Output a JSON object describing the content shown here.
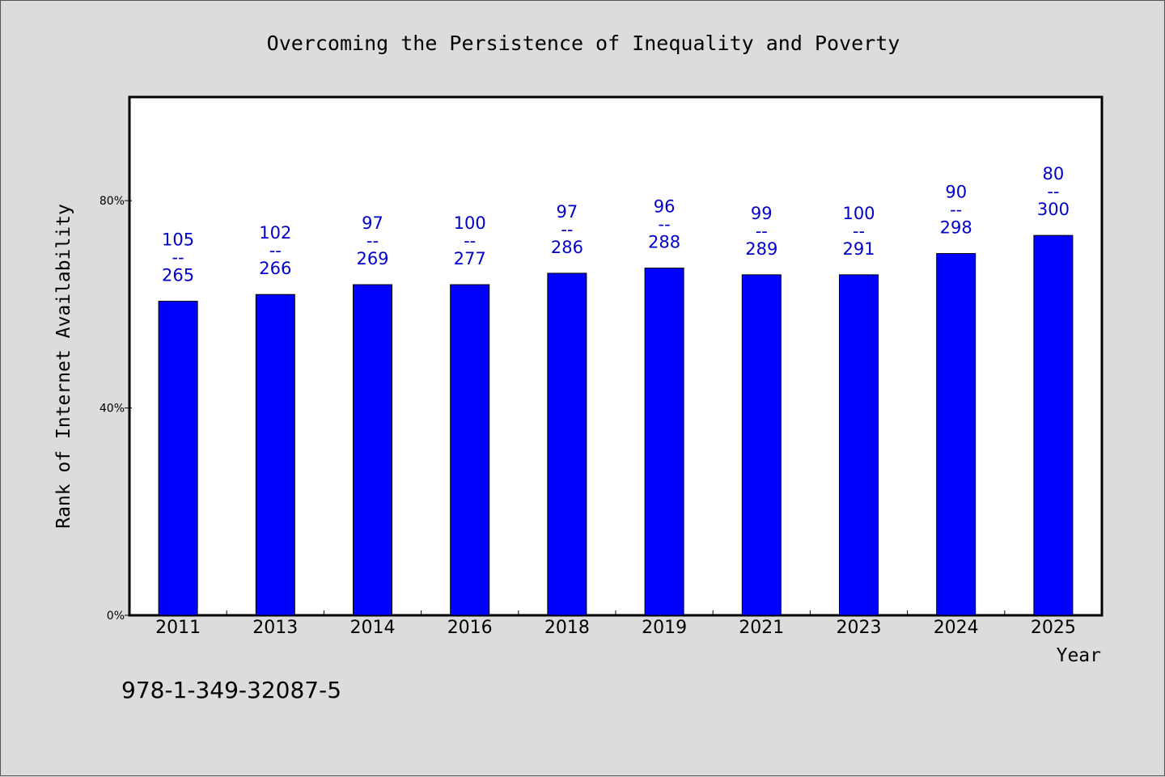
{
  "chart_data": {
    "type": "bar",
    "title": "Overcoming the Persistence of Inequality and Poverty",
    "xlabel": "Year",
    "ylabel": "Rank of Internet Availability",
    "yticks": [
      "0%",
      "40%",
      "80%"
    ],
    "ylim": [
      0,
      100
    ],
    "categories": [
      "2011",
      "2013",
      "2014",
      "2016",
      "2018",
      "2019",
      "2021",
      "2023",
      "2024",
      "2025"
    ],
    "values": [
      60.6,
      61.9,
      63.8,
      63.8,
      66.0,
      67.0,
      65.7,
      65.7,
      69.8,
      73.3
    ],
    "annotations": [
      {
        "top": "105",
        "sep": "--",
        "bottom": "265"
      },
      {
        "top": "102",
        "sep": "--",
        "bottom": "266"
      },
      {
        "top": "97",
        "sep": "--",
        "bottom": "269"
      },
      {
        "top": "100",
        "sep": "--",
        "bottom": "277"
      },
      {
        "top": "97",
        "sep": "--",
        "bottom": "286"
      },
      {
        "top": "96",
        "sep": "--",
        "bottom": "288"
      },
      {
        "top": "99",
        "sep": "--",
        "bottom": "289"
      },
      {
        "top": "100",
        "sep": "--",
        "bottom": "291"
      },
      {
        "top": "90",
        "sep": "--",
        "bottom": "298"
      },
      {
        "top": "80",
        "sep": "--",
        "bottom": "300"
      }
    ],
    "bar_color": "#0000ff",
    "label_color": "#0000cc",
    "grid": false
  },
  "footer": {
    "isbn": "978-1-349-32087-5"
  }
}
